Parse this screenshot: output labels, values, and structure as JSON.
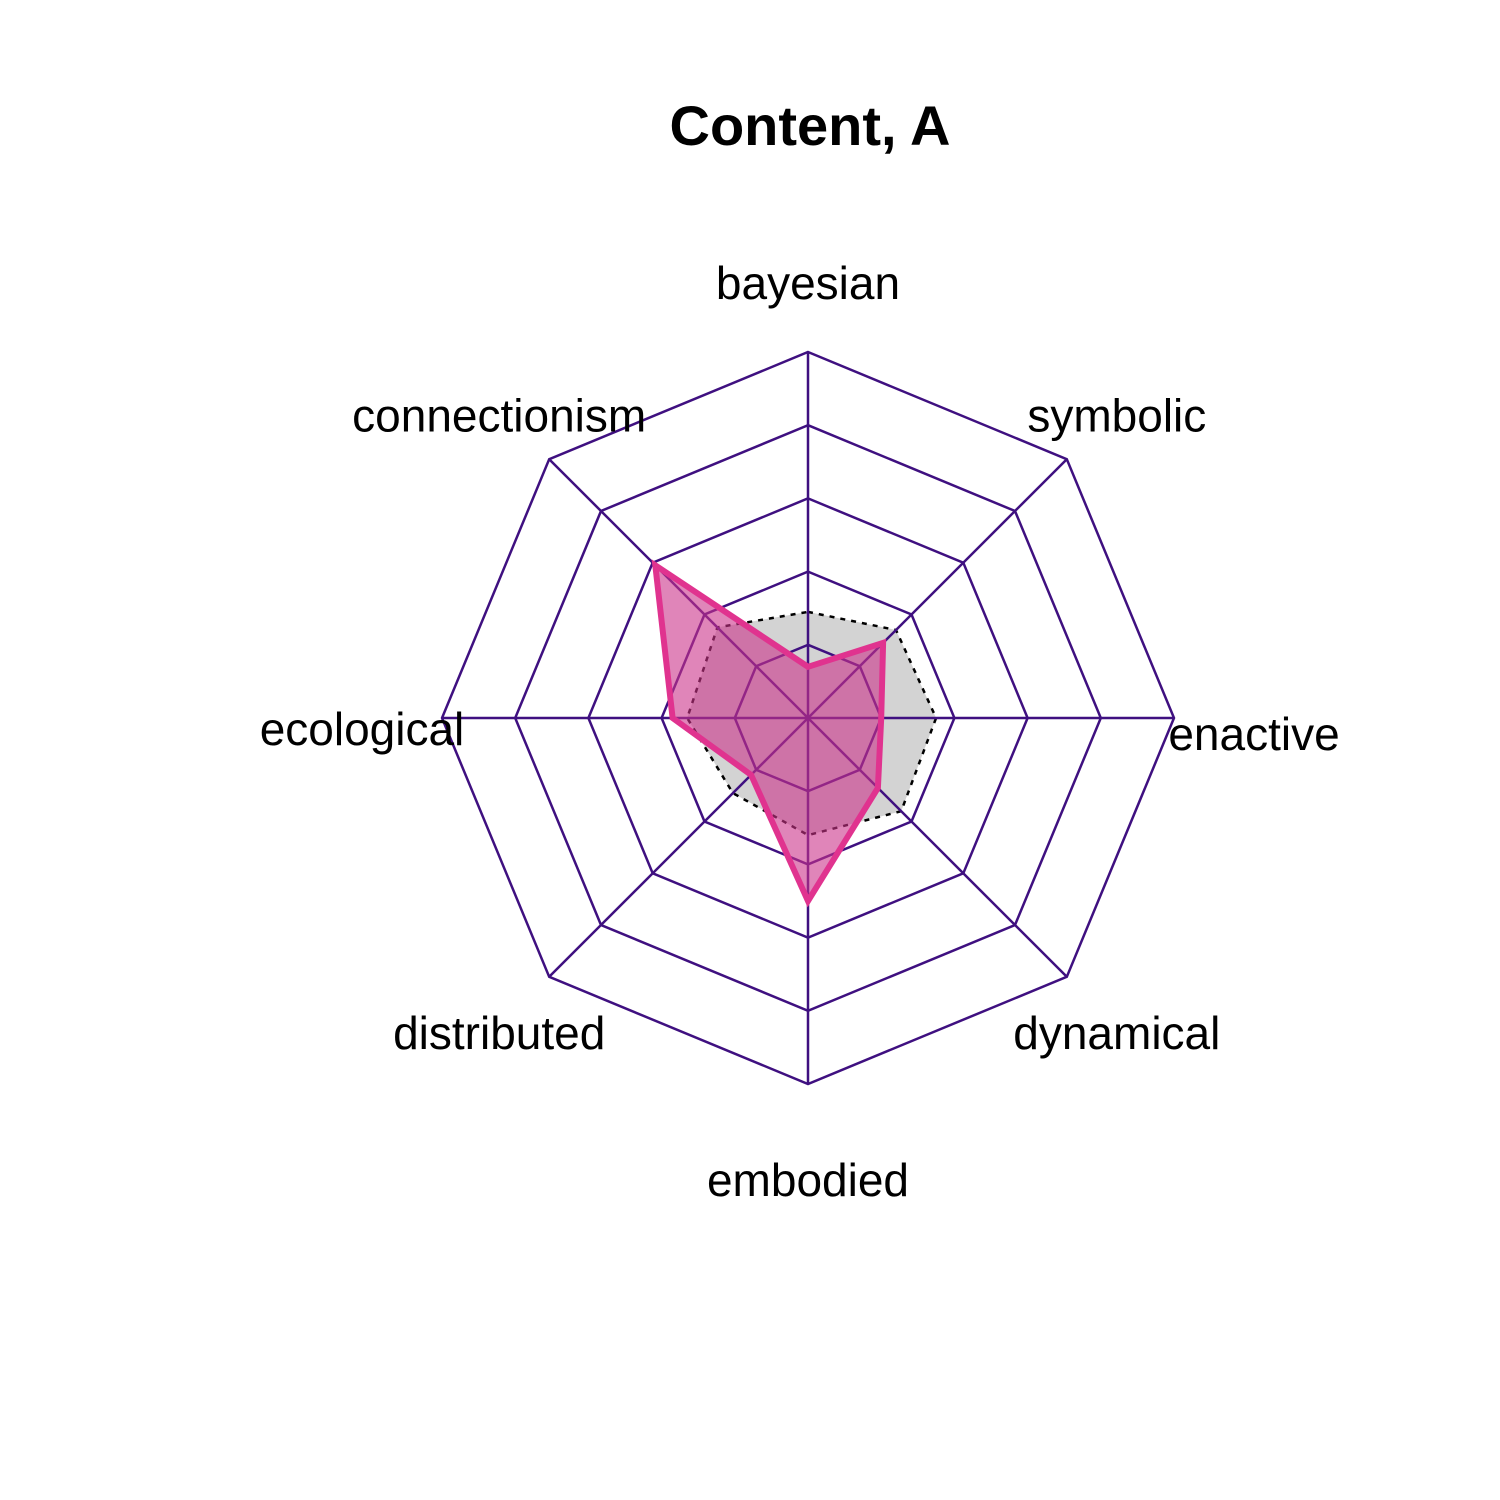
{
  "chart_data": {
    "type": "radar",
    "title": "Content, A",
    "axes": [
      "bayesian",
      "symbolic",
      "enactive",
      "dynamical",
      "embodied",
      "distributed",
      "ecological",
      "connectionism"
    ],
    "grid_levels": 5,
    "range": [
      0,
      1
    ],
    "series": [
      {
        "values": [
          0.14,
          0.29,
          0.2,
          0.27,
          0.5,
          0.22,
          0.37,
          0.59
        ],
        "color": "#e0338f",
        "fill": "rgba(204, 51, 139, 0.6)"
      },
      {
        "values": [
          0.29,
          0.34,
          0.35,
          0.36,
          0.32,
          0.29,
          0.33,
          0.35
        ],
        "color": "#000000",
        "fill": "#d3d3d3",
        "line_style": "dotted"
      }
    ],
    "colors": {
      "grid": "#3f1080"
    }
  }
}
